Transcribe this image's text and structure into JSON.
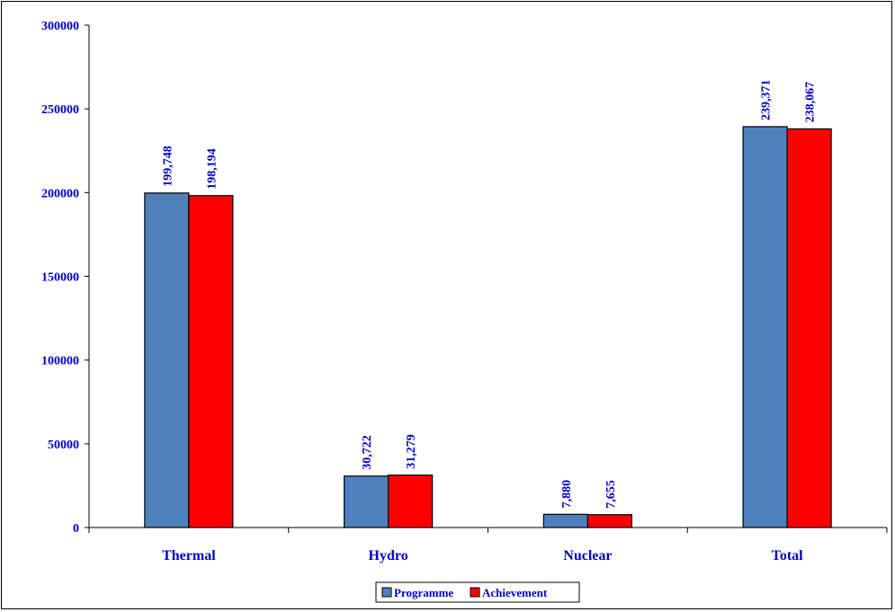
{
  "chart_data": {
    "type": "bar",
    "categories": [
      "Thermal",
      "Hydro",
      "Nuclear",
      "Total"
    ],
    "series": [
      {
        "name": "Programme",
        "values": [
          199748,
          30722,
          7880,
          239371
        ],
        "labels": [
          "199,748",
          "30,722",
          "7,880",
          "239,371"
        ],
        "color": "#4f81bd"
      },
      {
        "name": "Achievement",
        "values": [
          198194,
          31279,
          7655,
          238067
        ],
        "labels": [
          "198,194",
          "31,279",
          "7,655",
          "238,067"
        ],
        "color": "#ff0000"
      }
    ],
    "yticks": [
      "0",
      "50000",
      "100000",
      "150000",
      "200000",
      "250000",
      "300000"
    ],
    "ylim": [
      0,
      300000
    ],
    "grid": false,
    "legend_position": "bottom",
    "text_color": "#0000cc"
  }
}
